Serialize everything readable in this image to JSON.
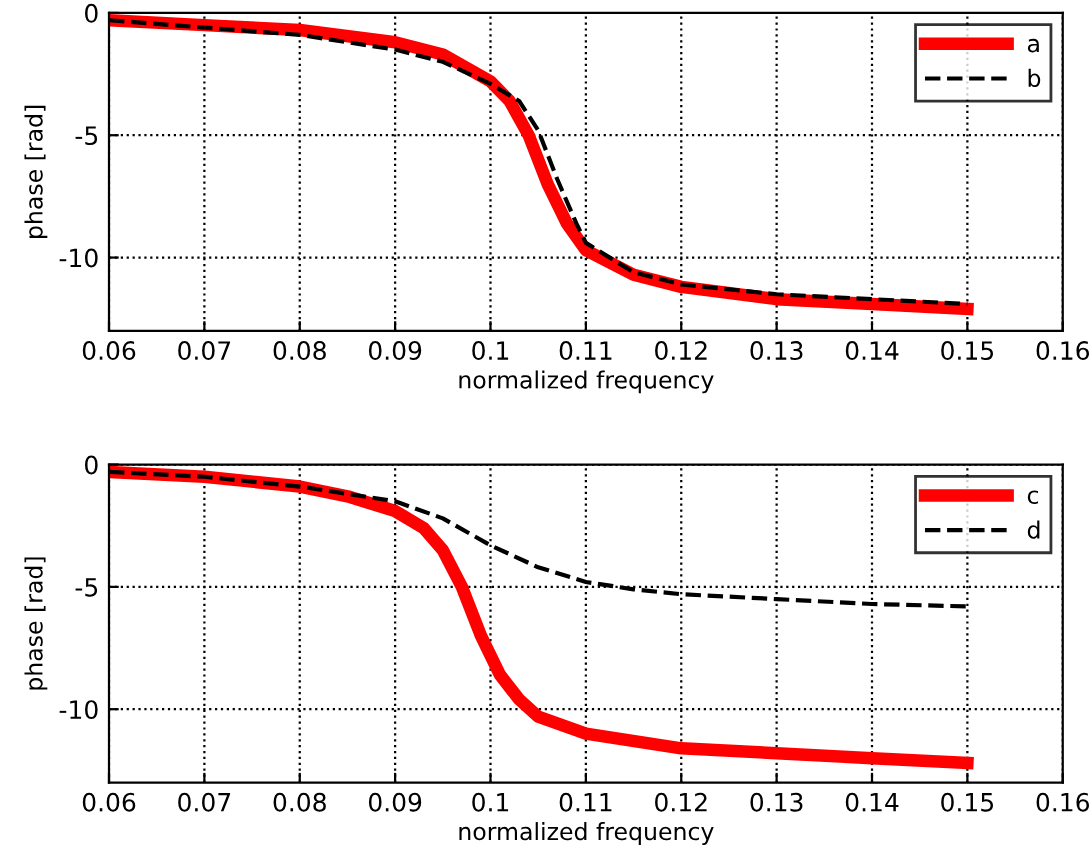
{
  "chart_data": [
    {
      "type": "line",
      "xlabel": "normalized frequency",
      "ylabel": "phase [rad]",
      "xlim": [
        0.06,
        0.16
      ],
      "ylim": [
        -13,
        0
      ],
      "xticks": [
        0.06,
        0.07,
        0.08,
        0.09,
        0.1,
        0.11,
        0.12,
        0.13,
        0.14,
        0.15,
        0.16
      ],
      "yticks": [
        -10,
        -5,
        0
      ],
      "grid": true,
      "legend": "top right",
      "series": [
        {
          "name": "a",
          "color": "#ff0000",
          "line_style": "solid",
          "x": [
            0.06,
            0.07,
            0.08,
            0.09,
            0.095,
            0.1,
            0.102,
            0.104,
            0.106,
            0.108,
            0.11,
            0.115,
            0.12,
            0.13,
            0.14,
            0.15
          ],
          "values": [
            -0.3,
            -0.5,
            -0.7,
            -1.2,
            -1.7,
            -2.8,
            -3.6,
            -5.0,
            -7.0,
            -8.6,
            -9.7,
            -10.7,
            -11.2,
            -11.7,
            -11.9,
            -12.1
          ]
        },
        {
          "name": "b",
          "color": "#000000",
          "line_style": "dashed",
          "x": [
            0.06,
            0.07,
            0.08,
            0.09,
            0.095,
            0.1,
            0.103,
            0.105,
            0.107,
            0.109,
            0.11,
            0.115,
            0.12,
            0.13,
            0.14,
            0.15
          ],
          "values": [
            -0.3,
            -0.6,
            -0.9,
            -1.5,
            -2.0,
            -2.9,
            -3.6,
            -4.8,
            -6.8,
            -8.6,
            -9.4,
            -10.6,
            -11.1,
            -11.5,
            -11.7,
            -11.9
          ]
        }
      ]
    },
    {
      "type": "line",
      "xlabel": "normalized frequency",
      "ylabel": "phase [rad]",
      "xlim": [
        0.06,
        0.16
      ],
      "ylim": [
        -13,
        0
      ],
      "xticks": [
        0.06,
        0.07,
        0.08,
        0.09,
        0.1,
        0.11,
        0.12,
        0.13,
        0.14,
        0.15,
        0.16
      ],
      "yticks": [
        -10,
        -5,
        0
      ],
      "grid": true,
      "legend": "top right",
      "series": [
        {
          "name": "c",
          "color": "#ff0000",
          "line_style": "solid",
          "x": [
            0.06,
            0.07,
            0.08,
            0.085,
            0.09,
            0.093,
            0.095,
            0.097,
            0.099,
            0.101,
            0.103,
            0.105,
            0.11,
            0.12,
            0.13,
            0.14,
            0.15
          ],
          "values": [
            -0.3,
            -0.5,
            -0.9,
            -1.3,
            -1.9,
            -2.6,
            -3.5,
            -5.0,
            -7.0,
            -8.6,
            -9.6,
            -10.3,
            -11.0,
            -11.6,
            -11.8,
            -12.0,
            -12.2
          ]
        },
        {
          "name": "d",
          "color": "#000000",
          "line_style": "dashed",
          "x": [
            0.06,
            0.07,
            0.08,
            0.09,
            0.095,
            0.1,
            0.105,
            0.11,
            0.115,
            0.12,
            0.13,
            0.14,
            0.15
          ],
          "values": [
            -0.3,
            -0.5,
            -0.9,
            -1.5,
            -2.2,
            -3.3,
            -4.2,
            -4.8,
            -5.1,
            -5.3,
            -5.5,
            -5.7,
            -5.8
          ]
        }
      ]
    }
  ]
}
